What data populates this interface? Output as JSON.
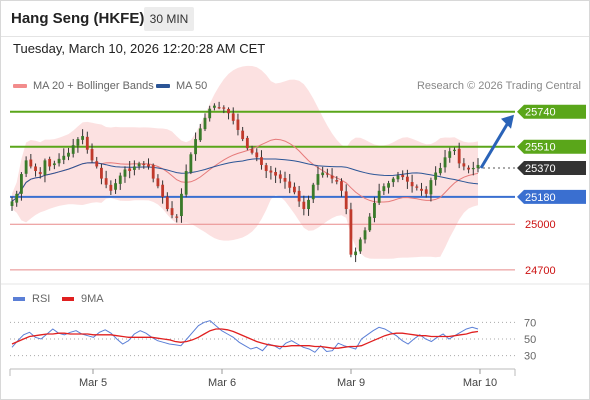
{
  "header": {
    "title": "Hang Seng (HKFE)",
    "timeframe": "30 MIN"
  },
  "timestamp": "Tuesday, March 10, 2026 12:20:28 AM CET",
  "legend": {
    "ma20": {
      "label": "MA 20 + Bollinger Bands",
      "color": "#f28c8c"
    },
    "ma50": {
      "label": "MA 50",
      "color": "#2b5596"
    }
  },
  "credit": "Research © 2026 Trading Central",
  "rsi_legend": {
    "rsi": {
      "label": "RSI",
      "color": "#5b7fd6"
    },
    "ma9": {
      "label": "9MA",
      "color": "#e02020"
    }
  },
  "colors": {
    "resistance": "#5aa61a",
    "support": "#3a6fd0",
    "pivot_box": "#333333",
    "target_line": "#e88a8a",
    "target_text": "#cc1111",
    "band_fill": "#fcdede",
    "candle_up": "#3a7a2a",
    "candle_down": "#c0392b",
    "arrow": "#2a63b8"
  },
  "chart_data": [
    {
      "type": "candlestick",
      "ylim": [
        24620,
        25850
      ],
      "x_labels": [
        "Mar 5",
        "Mar 6",
        "Mar 9",
        "Mar 10"
      ],
      "levels": [
        {
          "value": 25740,
          "label": "25740",
          "kind": "resistance"
        },
        {
          "value": 25510,
          "label": "25510",
          "kind": "resistance"
        },
        {
          "value": 25370,
          "label": "25370",
          "kind": "pivot"
        },
        {
          "value": 25180,
          "label": "25180",
          "kind": "support"
        },
        {
          "value": 25000,
          "label": "25000",
          "kind": "target"
        },
        {
          "value": 24700,
          "label": "24700",
          "kind": "target"
        }
      ],
      "arrow": {
        "from": 25370,
        "to": 25740
      },
      "close_series": [
        25150,
        25200,
        25330,
        25420,
        25380,
        25350,
        25330,
        25420,
        25380,
        25400,
        25430,
        25450,
        25470,
        25520,
        25560,
        25580,
        25490,
        25420,
        25380,
        25300,
        25260,
        25220,
        25270,
        25320,
        25360,
        25350,
        25380,
        25400,
        25390,
        25380,
        25300,
        25250,
        25180,
        25100,
        25060,
        25050,
        25200,
        25350,
        25460,
        25560,
        25630,
        25700,
        25760,
        25780,
        25770,
        25760,
        25730,
        25680,
        25620,
        25560,
        25500,
        25470,
        25440,
        25390,
        25350,
        25340,
        25320,
        25300,
        25280,
        25240,
        25210,
        25150,
        25100,
        25160,
        25260,
        25330,
        25340,
        25330,
        25300,
        25280,
        25220,
        25100,
        24800,
        24820,
        24900,
        24960,
        25050,
        25140,
        25220,
        25250,
        25270,
        25300,
        25320,
        25310,
        25280,
        25250,
        25240,
        25220,
        25200,
        25290,
        25340,
        25370,
        25440,
        25480,
        25490,
        25400,
        25380,
        25360,
        25370,
        25390
      ]
    },
    {
      "type": "line",
      "title": "RSI",
      "ylim": [
        20,
        80
      ],
      "yticks": [
        70,
        50,
        30
      ],
      "series": [
        {
          "name": "RSI",
          "values": [
            40,
            48,
            55,
            58,
            52,
            50,
            56,
            62,
            57,
            55,
            58,
            60,
            56,
            54,
            52,
            58,
            61,
            57,
            50,
            44,
            48,
            56,
            60,
            57,
            52,
            48,
            46,
            44,
            43,
            42,
            50,
            58,
            66,
            70,
            72,
            66,
            60,
            56,
            52,
            46,
            42,
            38,
            40,
            36,
            44,
            42,
            38,
            45,
            48,
            44,
            40,
            38,
            34,
            42,
            35,
            36,
            45,
            42,
            40,
            38,
            50,
            55,
            60,
            64,
            62,
            58,
            54,
            48,
            44,
            50,
            55,
            50,
            47,
            52,
            56,
            50,
            54,
            58,
            62,
            64,
            62
          ]
        },
        {
          "name": "9MA",
          "values": [
            44,
            47,
            50,
            53,
            54,
            55,
            56,
            56,
            57,
            57,
            56,
            56,
            56,
            56,
            55,
            55,
            55,
            55,
            54,
            53,
            52,
            52,
            52,
            52,
            52,
            51,
            50,
            49,
            47,
            46,
            47,
            49,
            52,
            56,
            60,
            62,
            62,
            61,
            59,
            56,
            53,
            50,
            47,
            45,
            43,
            42,
            41,
            41,
            42,
            42,
            42,
            42,
            41,
            41,
            40,
            39,
            39,
            40,
            41,
            41,
            42,
            45,
            48,
            51,
            54,
            56,
            57,
            57,
            56,
            55,
            54,
            54,
            53,
            53,
            53,
            53,
            54,
            55,
            56,
            58,
            59
          ]
        }
      ]
    }
  ]
}
